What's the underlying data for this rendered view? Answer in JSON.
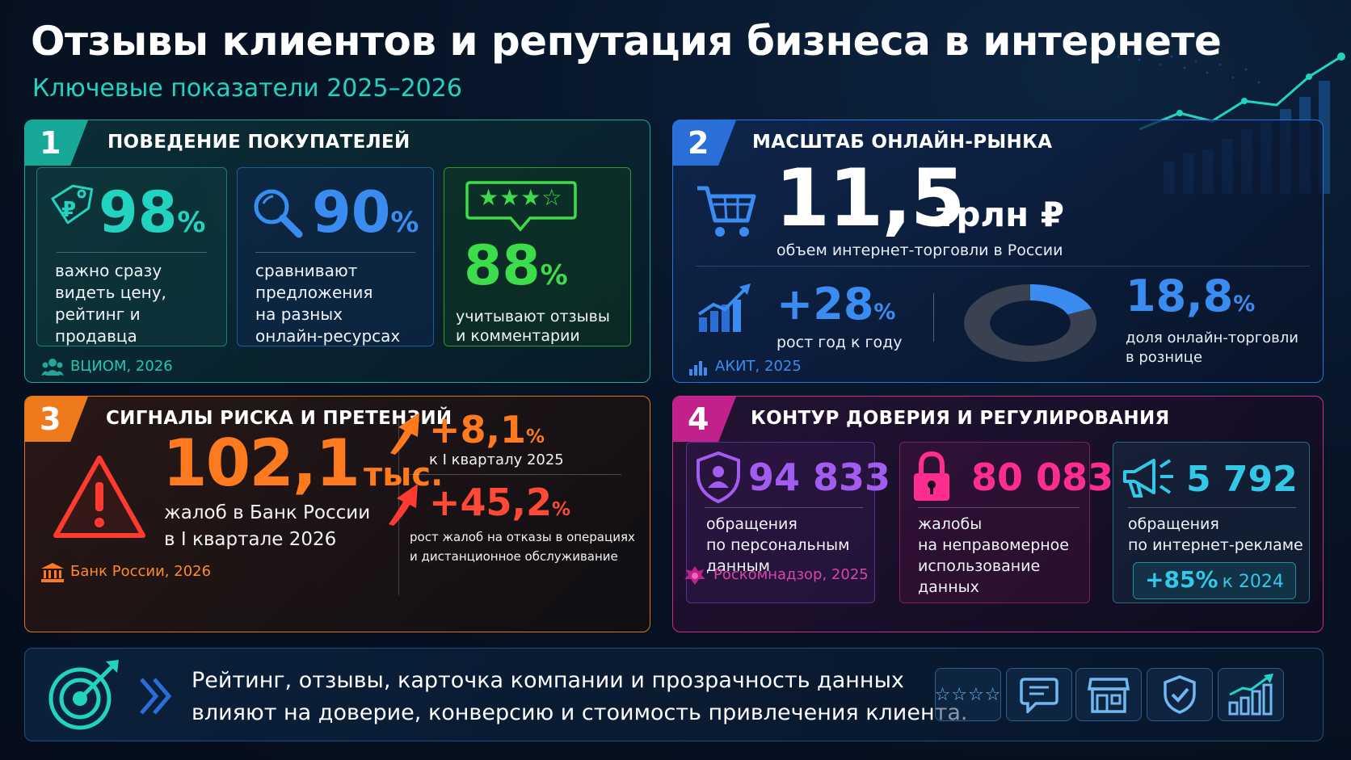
{
  "title": "Отзывы клиентов и репутация бизнеса в интернете",
  "subtitle": "Ключевые показатели 2025–2026",
  "colors": {
    "teal": "#22d3c0",
    "green": "#3ddc4a",
    "blue": "#3b8cf0",
    "orange": "#ff7a1f",
    "red": "#ff3b2f",
    "purple": "#a35cf0",
    "pink": "#ff2d8f",
    "cyan": "#33c8e8"
  },
  "section1": {
    "number": "1",
    "heading": "ПОВЕДЕНИЕ ПОКУПАТЕЛЕЙ",
    "card1": {
      "value": "98",
      "unit": "%",
      "text": [
        "важно сразу",
        "видеть цену,",
        "рейтинг и продавца"
      ],
      "icon": "price-tag-icon"
    },
    "card2": {
      "value": "90",
      "unit": "%",
      "text": [
        "сравнивают",
        "предложения",
        "на разных",
        "онлайн-ресурсах"
      ],
      "icon": "magnifier-icon"
    },
    "card3": {
      "value": "88",
      "unit": "%",
      "text": [
        "учитывают отзывы",
        "и комментарии"
      ],
      "icon": "rating-bubble-icon",
      "stars": "★★★☆"
    },
    "source": "ВЦИОМ, 2026"
  },
  "section2": {
    "number": "2",
    "heading": "МАСШТАБ ОНЛАЙН-РЫНКА",
    "main_value": "11,5",
    "main_unit": "трлн ₽",
    "main_text": "объем интернет-торговли в России",
    "growth_value": "+28",
    "growth_unit": "%",
    "growth_text": "рост год к году",
    "share_value": "18,8",
    "share_unit": "%",
    "share_text": [
      "доля онлайн-торговли",
      "в рознице"
    ],
    "share_fraction": 0.188,
    "source": "АКИТ, 2025"
  },
  "section3": {
    "number": "3",
    "heading": "СИГНАЛЫ РИСКА И ПРЕТЕНЗИЙ",
    "main_value": "102,1",
    "main_unit": "тыс.",
    "main_text": [
      "жалоб в Банк России",
      "в I квартале 2026"
    ],
    "stat1_value": "+8,1",
    "stat1_unit": "%",
    "stat1_text": "к I кварталу 2025",
    "stat2_value": "+45,2",
    "stat2_unit": "%",
    "stat2_text": [
      "рост жалоб на отказы в операциях",
      "и дистанционное обслуживание"
    ],
    "source": "Банк России, 2026"
  },
  "section4": {
    "number": "4",
    "heading": "КОНТУР ДОВЕРИЯ И РЕГУЛИРОВАНИЯ",
    "card1": {
      "value": "94 833",
      "text": [
        "обращения",
        "по персональным",
        "данным"
      ],
      "icon": "shield-person-icon"
    },
    "card2": {
      "value": "80 083",
      "text": [
        "жалобы",
        "на неправомерное",
        "использование",
        "данных"
      ],
      "icon": "padlock-icon"
    },
    "card3": {
      "value": "5 792",
      "text": [
        "обращения",
        "по интернет-рекламе"
      ],
      "icon": "megaphone-icon",
      "badge_value": "+85%",
      "badge_text": "к 2024"
    },
    "source": "Роскомнадзор, 2025"
  },
  "footer": {
    "line1": "Рейтинг, отзывы, карточка компании и прозрачность данных",
    "line2": "влияют на доверие, конверсию и стоимость привлечения клиента.",
    "icons": [
      "stars-icon",
      "chat-icon",
      "storefront-icon",
      "shield-check-icon",
      "growth-chart-icon"
    ],
    "stars": "☆☆☆☆"
  }
}
